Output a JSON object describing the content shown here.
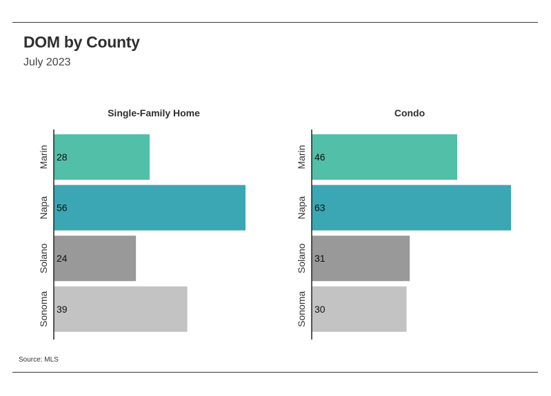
{
  "header": {
    "title": "DOM by County",
    "subtitle": "July 2023"
  },
  "footer": {
    "source": "Source:  MLS"
  },
  "chart_data": [
    {
      "type": "bar",
      "orientation": "horizontal",
      "title": "Single-Family Home",
      "categories": [
        "Marin",
        "Napa",
        "Solano",
        "Sonoma"
      ],
      "values": [
        28,
        56,
        24,
        39
      ],
      "colors": [
        "#52bfa8",
        "#3ba7b4",
        "#999999",
        "#c3c3c3"
      ],
      "xlim": [
        0,
        56
      ]
    },
    {
      "type": "bar",
      "orientation": "horizontal",
      "title": "Condo",
      "categories": [
        "Marin",
        "Napa",
        "Solano",
        "Sonoma"
      ],
      "values": [
        46,
        63,
        31,
        30
      ],
      "colors": [
        "#52bfa8",
        "#3ba7b4",
        "#999999",
        "#c3c3c3"
      ],
      "xlim": [
        0,
        63
      ]
    }
  ]
}
